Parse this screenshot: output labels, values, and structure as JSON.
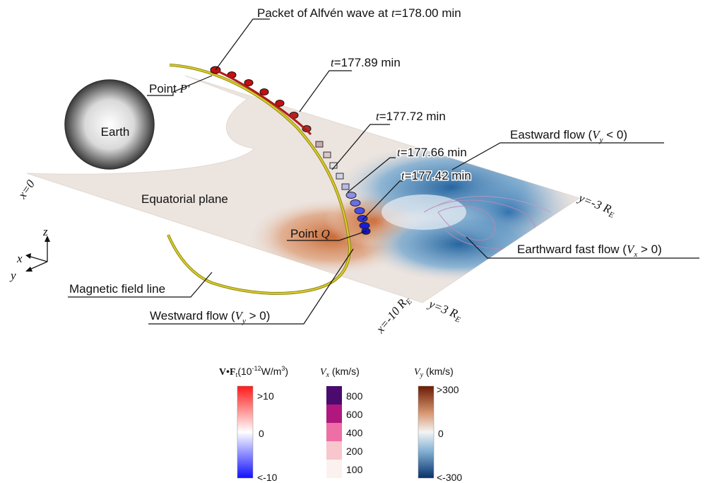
{
  "annotations": {
    "packet": "Packet of Alfvén wave at ",
    "packet_t": "t",
    "packet_val": "=178.00 min",
    "t1_t": "t",
    "t1_val": "=177.89 min",
    "t2_t": "t",
    "t2_val": "=177.72 min",
    "t3_t": "t",
    "t3_val": "=177.66 min",
    "t4_t": "t",
    "t4_val": "=177.42 min",
    "point_p_text": "Point ",
    "point_p_sym": "P'",
    "point_q_text": "Point ",
    "point_q_sym": "Q",
    "earth": "Earth",
    "equatorial": "Equatorial plane",
    "field_line": "Magnetic field line",
    "eastward_a": "Eastward flow (",
    "eastward_v": "V",
    "eastward_sub": "y",
    "eastward_b": " < 0)",
    "westward_a": "Westward flow (",
    "westward_v": "V",
    "westward_sub": "y",
    "westward_b": " > 0)",
    "earthward_a": "Earthward fast flow  (",
    "earthward_v": "V",
    "earthward_sub": "x",
    "earthward_b": " > 0)"
  },
  "axes": {
    "x0": "x=0",
    "xm10": "x=-10 R",
    "xm10_sub": "E",
    "ym3": "y=-3 R",
    "ym3_sub": "E",
    "y3": "y=3 R",
    "y3_sub": "E",
    "triad_x": "x",
    "triad_y": "y",
    "triad_z": "z"
  },
  "colorbars": {
    "vf": {
      "title_a": "V•F",
      "title_sub": "t",
      "title_b": "(10",
      "title_exp": "-12",
      "title_c": "W/m",
      "title_exp2": "3",
      "title_d": ")",
      "ticks": [
        ">10",
        "0",
        "<-10"
      ],
      "colors": [
        "#ff1a1a",
        "#ffffff",
        "#1010ff"
      ]
    },
    "vx": {
      "title_v": "V",
      "title_sub": "x",
      "title_unit": " (km/s)",
      "ticks": [
        "800",
        "600",
        "400",
        "200",
        "100"
      ],
      "colors": [
        "#4a0a6e",
        "#b0187f",
        "#ee6fa5",
        "#f8c6cd",
        "#fbf2ef"
      ]
    },
    "vy": {
      "title_v": "V",
      "title_sub": "y",
      "title_unit": " (km/s)",
      "ticks": [
        ">300",
        "0",
        "<-300"
      ],
      "colors": [
        "#6b1a02",
        "#e8c5ad",
        "#f4f4f4",
        "#aecbe0",
        "#06306b"
      ]
    }
  },
  "colors": {
    "plane": "#ece4df",
    "westward": "#d27c4e",
    "eastward": "#2f79b5",
    "fieldline": "#cfc21a",
    "packet_red": "#c41010",
    "packet_blue": "#1414d8"
  }
}
